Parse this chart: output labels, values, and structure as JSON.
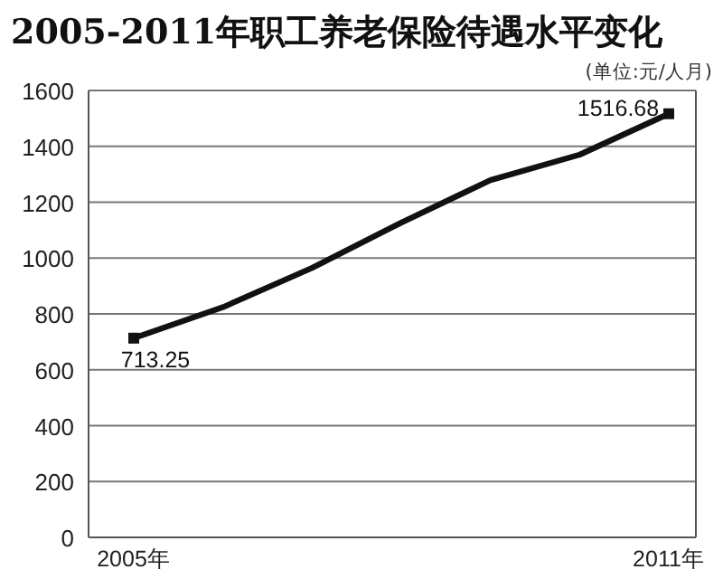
{
  "chart_data": {
    "type": "line",
    "title": "2005-2011年职工养老保险待遇水平变化",
    "subtitle": "(单位:元/人月)",
    "categories": [
      "2005年",
      null,
      null,
      null,
      null,
      null,
      "2011年"
    ],
    "series": [
      {
        "color": "#111111",
        "marker": "none",
        "values": [
          713.25,
          824,
          965,
          1127,
          1279,
          1370,
          1516.68
        ]
      },
      {
        "type": "scatter",
        "color": "#111111",
        "marker": "square",
        "values": [
          713.25,
          null,
          null,
          null,
          null,
          null,
          1516.68
        ],
        "value_labels": [
          "713.25",
          null,
          null,
          null,
          null,
          null,
          "1516.68"
        ]
      }
    ],
    "ylim": [
      0,
      1600
    ],
    "yticks": [
      0,
      200,
      400,
      600,
      800,
      1000,
      1200,
      1400,
      1600
    ],
    "grid": "y"
  }
}
